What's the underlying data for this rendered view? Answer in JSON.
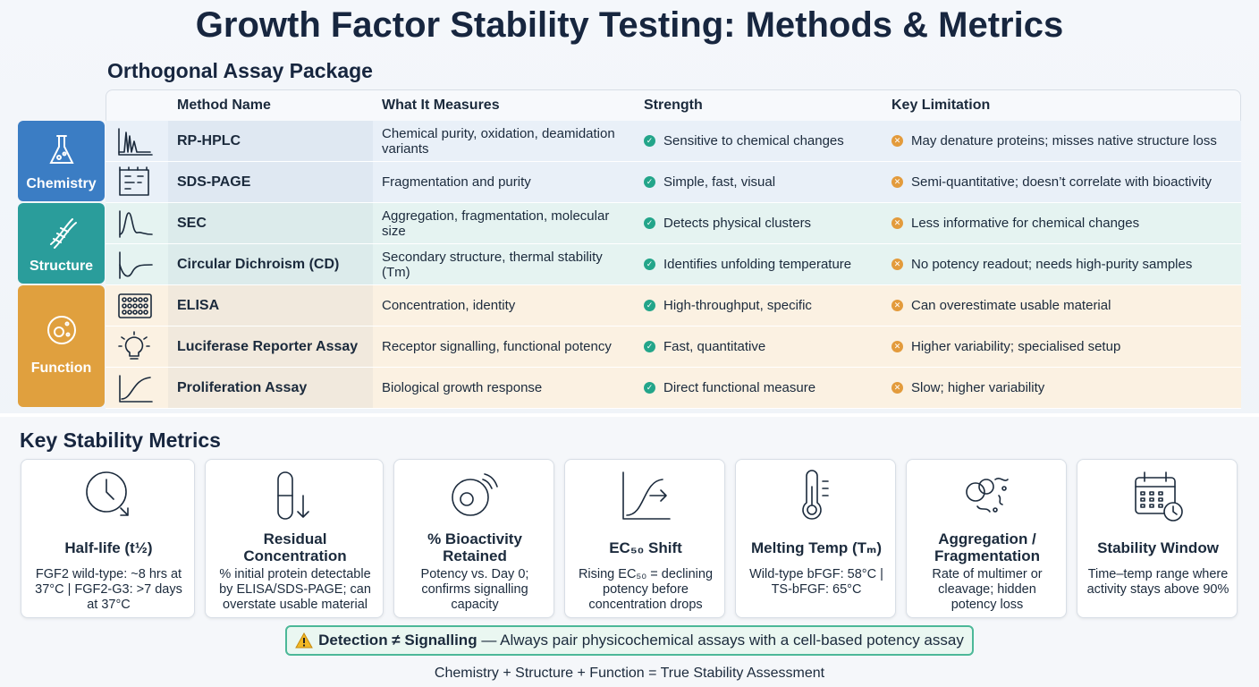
{
  "header": {
    "title": "Growth Factor Stability Testing: Methods & Metrics"
  },
  "table": {
    "title": "Orthogonal Assay Package",
    "headers": [
      "Method Name",
      "What It Measures",
      "Strength",
      "Key Limitation"
    ],
    "groups": [
      {
        "label": "Chemistry",
        "color": "#3b7dc4",
        "bg": "#e9f0f8",
        "rows": [
          {
            "method": "RP-HPLC",
            "measures": "Chemical purity, oxidation, deamidation variants",
            "strength": "Sensitive to chemical changes",
            "limitation": "May denature proteins; misses native structure loss"
          },
          {
            "method": "SDS-PAGE",
            "measures": "Fragmentation and purity",
            "strength": "Simple, fast, visual",
            "limitation": "Semi-quantitative; doesn’t correlate with bioactivity"
          }
        ]
      },
      {
        "label": "Structure",
        "color": "#2a9d9b",
        "bg": "#e5f3f1",
        "rows": [
          {
            "method": "SEC",
            "measures": "Aggregation, fragmentation, molecular size",
            "strength": "Detects physical clusters",
            "limitation": "Less informative for chemical changes"
          },
          {
            "method": "Circular Dichroism (CD)",
            "measures": "Secondary structure, thermal stability (Tm)",
            "strength": "Identifies unfolding temperature",
            "limitation": "No potency readout; needs high-purity samples"
          }
        ]
      },
      {
        "label": "Function",
        "color": "#e0a03e",
        "bg": "#fbf1e2",
        "rows": [
          {
            "method": "ELISA",
            "measures": "Concentration, identity",
            "strength": "High-throughput, specific",
            "limitation": "Can overestimate usable material"
          },
          {
            "method": "Luciferase Reporter Assay",
            "measures": "Receptor signalling, functional potency",
            "strength": "Fast, quantitative",
            "limitation": "Higher variability; specialised setup"
          },
          {
            "method": "Proliferation Assay",
            "measures": "Biological growth response",
            "strength": "Direct functional measure",
            "limitation": "Slow; higher variability"
          }
        ]
      }
    ]
  },
  "metrics": {
    "title": "Key Stability Metrics",
    "cards": [
      {
        "title": "Half-life (t½)",
        "text": "FGF2 wild-type: ~8 hrs at 37°C | FGF2-G3: >7 days at 37°C"
      },
      {
        "title": "Residual Concentration",
        "text": "% initial protein detectable by ELISA/SDS-PAGE; can overstate usable material"
      },
      {
        "title": "% Bioactivity Retained",
        "text": "Potency vs. Day 0; confirms signalling capacity"
      },
      {
        "title": "EC₅₀ Shift",
        "text": "Rising EC₅₀ = declining potency before concentration drops"
      },
      {
        "title": "Melting Temp (Tₘ)",
        "text": "Wild-type bFGF: 58°C | TS-bFGF: 65°C"
      },
      {
        "title": "Aggregation / Fragmentation",
        "text": "Rate of multimer or cleavage; hidden potency loss"
      },
      {
        "title": "Stability Window",
        "text": "Time–temp range where activity stays above 90%"
      }
    ]
  },
  "callout": {
    "bold": "Detection ≠ Signalling",
    "text": "— Always pair physicochemical assays with a cell-based potency assay"
  },
  "footer": {
    "text": "Chemistry + Structure + Function = True Stability Assessment"
  }
}
